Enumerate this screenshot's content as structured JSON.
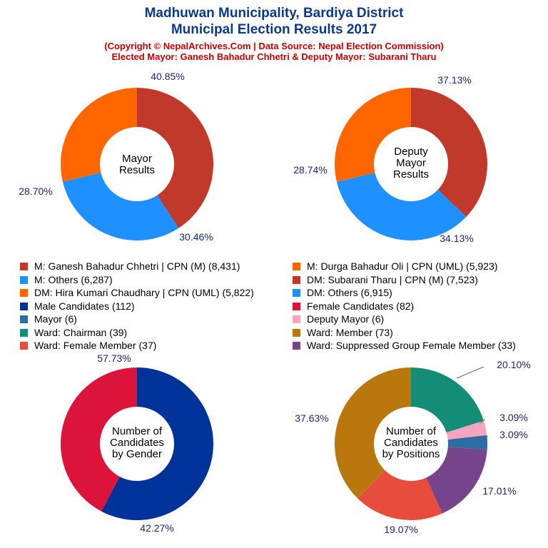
{
  "header": {
    "title1": "Madhuwan Municipality, Bardiya District",
    "title2": "Municipal Election Results 2017",
    "sub1": "(Copyright © NepalArchives.Com | Data Source: Nepal Election Commission)",
    "sub2": "Elected Mayor: Ganesh Bahadur Chhetri & Deputy Mayor: Subarani Tharu"
  },
  "chart_data": [
    {
      "type": "pie",
      "center_label": [
        "Mayor",
        "Results"
      ],
      "slices": [
        {
          "label": "M: Ganesh Bahadur Chhetri | CPN (M)",
          "value": 8431,
          "pct_label": "40.85%",
          "color": "#c0392b"
        },
        {
          "label": "M: Others",
          "value": 6287,
          "pct_label": "30.46%",
          "color": "#1e90ff"
        },
        {
          "label": "M: Durga Bahadur Oli | CPN (UML)",
          "value": 5923,
          "pct_label": "28.70%",
          "color": "#ff6600"
        }
      ]
    },
    {
      "type": "pie",
      "center_label": [
        "Deputy",
        "Mayor",
        "Results"
      ],
      "slices": [
        {
          "label": "DM: Subarani Tharu | CPN (M)",
          "value": 7523,
          "pct_label": "37.13%",
          "color": "#c0392b"
        },
        {
          "label": "DM: Others",
          "value": 6915,
          "pct_label": "34.13%",
          "color": "#1e90ff"
        },
        {
          "label": "DM: Hira Kumari Chaudhary | CPN (UML)",
          "value": 5822,
          "pct_label": "28.74%",
          "color": "#ff6600"
        }
      ]
    },
    {
      "type": "pie",
      "center_label": [
        "Number of",
        "Candidates",
        "by Gender"
      ],
      "slices": [
        {
          "label": "Male Candidates",
          "value": 112,
          "pct_label": "57.73%",
          "color": "#003399"
        },
        {
          "label": "Female Candidates",
          "value": 82,
          "pct_label": "42.27%",
          "color": "#dc143c"
        }
      ]
    },
    {
      "type": "pie",
      "center_label": [
        "Number of",
        "Candidates",
        "by Positions"
      ],
      "slices": [
        {
          "label": "Ward: Chairman",
          "value": 39,
          "pct_label": "20.10%",
          "color": "#138d75"
        },
        {
          "label": "Deputy Mayor",
          "value": 6,
          "pct_label": "3.09%",
          "color": "#f4a6c0"
        },
        {
          "label": "Mayor",
          "value": 6,
          "pct_label": "3.09%",
          "color": "#2e6da4"
        },
        {
          "label": "Ward: Suppressed Group Female Member",
          "value": 33,
          "pct_label": "17.01%",
          "color": "#76448a"
        },
        {
          "label": "Ward: Female Member",
          "value": 37,
          "pct_label": "19.07%",
          "color": "#e74c3c"
        },
        {
          "label": "Ward: Member",
          "value": 73,
          "pct_label": "37.63%",
          "color": "#b9770e"
        }
      ]
    }
  ],
  "legend": [
    {
      "text": "M: Ganesh Bahadur Chhetri | CPN (M) (8,431)",
      "color": "#c0392b"
    },
    {
      "text": "M: Durga Bahadur Oli | CPN (UML) (5,923)",
      "color": "#ff6600"
    },
    {
      "text": "M: Others (6,287)",
      "color": "#1e90ff"
    },
    {
      "text": "DM: Subarani Tharu | CPN (M) (7,523)",
      "color": "#c0392b"
    },
    {
      "text": "DM: Hira Kumari Chaudhary | CPN (UML) (5,822)",
      "color": "#ff6600"
    },
    {
      "text": "DM: Others (6,915)",
      "color": "#1e90ff"
    },
    {
      "text": "Male Candidates (112)",
      "color": "#003399"
    },
    {
      "text": "Female Candidates (82)",
      "color": "#dc143c"
    },
    {
      "text": "Mayor (6)",
      "color": "#2e6da4"
    },
    {
      "text": "Deputy Mayor (6)",
      "color": "#f4a6c0"
    },
    {
      "text": "Ward: Chairman (39)",
      "color": "#138d75"
    },
    {
      "text": "Ward: Member (73)",
      "color": "#b9770e"
    },
    {
      "text": "Ward: Female Member (37)",
      "color": "#e74c3c"
    },
    {
      "text": "Ward: Suppressed Group Female Member (33)",
      "color": "#76448a"
    }
  ]
}
